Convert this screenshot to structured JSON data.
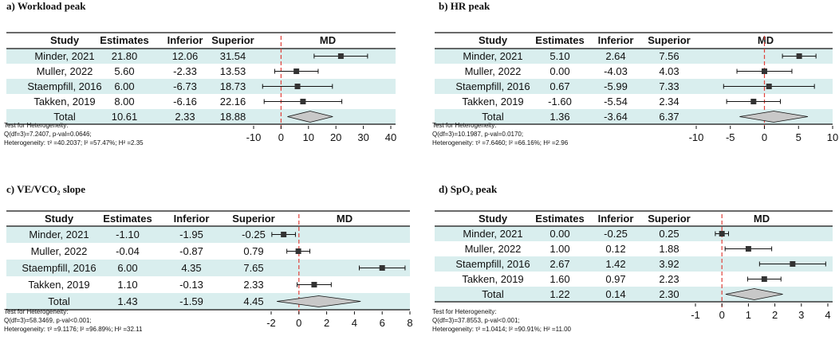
{
  "colors": {
    "band": "#d9eeee",
    "refline": "#e0413a",
    "diamond_fill": "#c8c8c8",
    "marker": "#333333",
    "ink": "#111111"
  },
  "chart_data": [
    {
      "type": "forest",
      "title": "a) Workload peak",
      "columns": [
        "Study",
        "Estimates",
        "Inferior",
        "Superior",
        "MD"
      ],
      "rows": [
        {
          "study": "Minder, 2021",
          "est": "21.80",
          "lo": "12.06",
          "hi": "31.54"
        },
        {
          "study": "Muller, 2022",
          "est": "5.60",
          "lo": "-2.33",
          "hi": "13.53"
        },
        {
          "study": "Staempfill, 2016",
          "est": "6.00",
          "lo": "-6.73",
          "hi": "18.73"
        },
        {
          "study": "Takken, 2019",
          "est": "8.00",
          "lo": "-6.16",
          "hi": "22.16"
        }
      ],
      "total": {
        "study": "Total",
        "est": "10.61",
        "lo": "2.33",
        "hi": "18.88"
      },
      "xlim": [
        -10,
        40
      ],
      "ticks": [
        "-10",
        "0",
        "10",
        "20",
        "30",
        "40"
      ],
      "heterogeneity": [
        "Test for Heterogeneity:",
        "Q(df=3)=7.2407, p-val=0.0646;",
        "Heterogeneity: τ² =40.2037; I² =57.47%; H² =2.35"
      ]
    },
    {
      "type": "forest",
      "title": "b) HR peak",
      "columns": [
        "Study",
        "Estimates",
        "Inferior",
        "Superior",
        "MD"
      ],
      "rows": [
        {
          "study": "Minder, 2021",
          "est": "5.10",
          "lo": "2.64",
          "hi": "7.56"
        },
        {
          "study": "Muller, 2022",
          "est": "0.00",
          "lo": "-4.03",
          "hi": "4.03"
        },
        {
          "study": "Staempfill, 2016",
          "est": "0.67",
          "lo": "-5.99",
          "hi": "7.33"
        },
        {
          "study": "Takken, 2019",
          "est": "-1.60",
          "lo": "-5.54",
          "hi": "2.34"
        }
      ],
      "total": {
        "study": "Total",
        "est": "1.36",
        "lo": "-3.64",
        "hi": "6.37"
      },
      "xlim": [
        -10,
        10
      ],
      "ticks": [
        "-10",
        "-5",
        "0",
        "5",
        "10"
      ],
      "heterogeneity": [
        "Test for Heterogeneity:",
        "Q(df=3)=10.1987, p-val=0.0170;",
        "Heterogeneity: τ² =7.6460; I² =66.16%; H² =2.96"
      ]
    },
    {
      "type": "forest",
      "title": "c) VE/VCO₂ slope",
      "columns": [
        "Study",
        "Estimates",
        "Inferior",
        "Superior",
        "MD"
      ],
      "rows": [
        {
          "study": "Minder, 2021",
          "est": "-1.10",
          "lo": "-1.95",
          "hi": "-0.25"
        },
        {
          "study": "Muller, 2022",
          "est": "-0.04",
          "lo": "-0.87",
          "hi": "0.79"
        },
        {
          "study": "Staempfill, 2016",
          "est": "6.00",
          "lo": "4.35",
          "hi": "7.65"
        },
        {
          "study": "Takken, 2019",
          "est": "1.10",
          "lo": "-0.13",
          "hi": "2.33"
        }
      ],
      "total": {
        "study": "Total",
        "est": "1.43",
        "lo": "-1.59",
        "hi": "4.45"
      },
      "xlim": [
        -2,
        8
      ],
      "ticks": [
        "-2",
        "0",
        "2",
        "4",
        "6",
        "8"
      ],
      "heterogeneity": [
        "Test for Heterogeneity:",
        "Q(df=3)=58.3469, p-val<0.001;",
        "Heterogeneity: τ² =9.1176; I² =96.89%; H² =32.11"
      ]
    },
    {
      "type": "forest",
      "title": "d) SpO₂ peak",
      "columns": [
        "Study",
        "Estimates",
        "Inferior",
        "Superior",
        "MD"
      ],
      "rows": [
        {
          "study": "Minder, 2021",
          "est": "0.00",
          "lo": "-0.25",
          "hi": "0.25"
        },
        {
          "study": "Muller, 2022",
          "est": "1.00",
          "lo": "0.12",
          "hi": "1.88"
        },
        {
          "study": "Staempfill, 2016",
          "est": "2.67",
          "lo": "1.42",
          "hi": "3.92"
        },
        {
          "study": "Takken, 2019",
          "est": "1.60",
          "lo": "0.97",
          "hi": "2.23"
        }
      ],
      "total": {
        "study": "Total",
        "est": "1.22",
        "lo": "0.14",
        "hi": "2.30"
      },
      "xlim": [
        -1,
        4
      ],
      "ticks": [
        "-1",
        "0",
        "1",
        "2",
        "3",
        "4"
      ],
      "heterogeneity": [
        "Test for Heterogeneity:",
        "Q(df=3)=37.8553, p-val<0.001;",
        "Heterogeneity: τ² =1.0414; I² =90.91%; H² =11.00"
      ]
    }
  ]
}
